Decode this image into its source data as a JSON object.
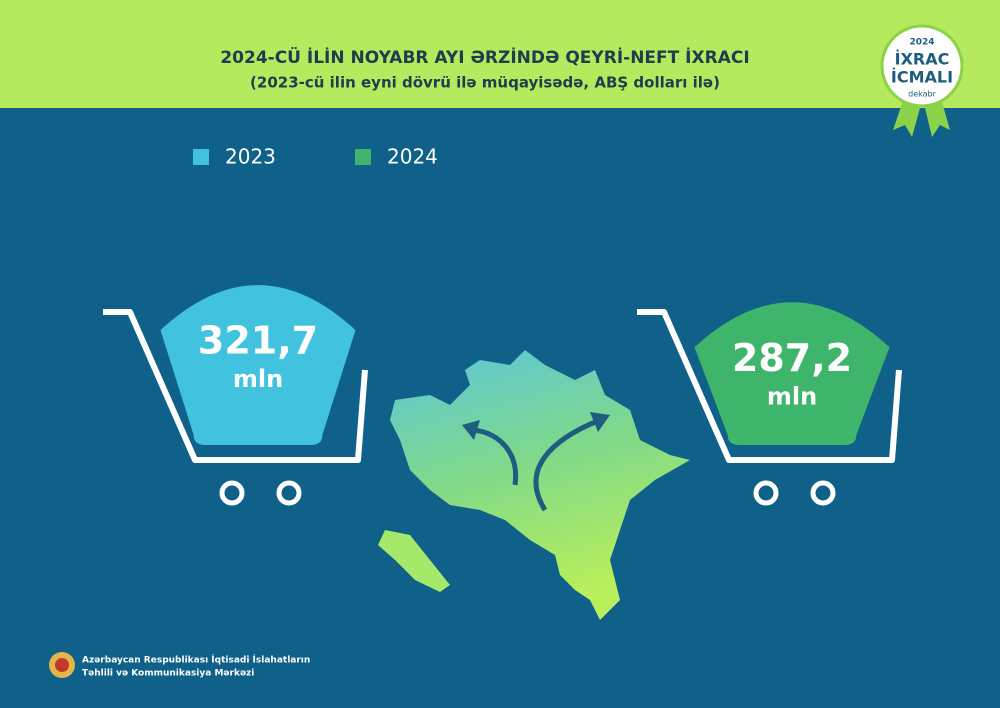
{
  "chart_data": {
    "type": "cart",
    "title": "2024-CÜ İLİN NOYABR AYI ƏRZİNDƏ QEYRİ-NEFT İXRACI",
    "subtitle": "(2023-cü ilin eyni dövrü ilə müqayisədə, ABŞ dolları ilə)",
    "unit": "mln",
    "series": [
      {
        "name": "2023",
        "color": "#41c3e0",
        "values": [
          321.7
        ],
        "value_labels": [
          "321,7"
        ]
      },
      {
        "name": "2024",
        "color": "#3fb56c",
        "values": [
          287.2
        ],
        "value_labels": [
          "287,2"
        ]
      }
    ]
  },
  "badge": {
    "year": "2024",
    "line1": "İXRAC",
    "line2": "İCMALI",
    "month": "dekabr"
  },
  "footer": {
    "line1": "Azərbaycan Respublikası İqtisadi İslahatların",
    "line2": "Təhlili və Kommunikasiya Mərkəzi"
  }
}
